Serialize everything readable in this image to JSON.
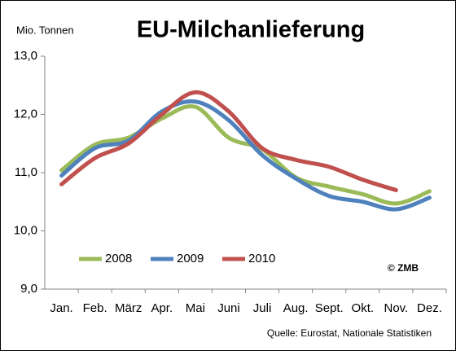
{
  "chart_data": {
    "type": "line",
    "title": "EU-Milchanlieferung",
    "y_label": "Mio. Tonnen",
    "annotation": "© ZMB",
    "source": "Quelle: Eurostat,  Nationale Statistiken",
    "categories": [
      "Jan.",
      "Feb.",
      "März",
      "Apr.",
      "Mai",
      "Juni",
      "Juli",
      "Aug.",
      "Sept.",
      "Okt.",
      "Nov.",
      "Dez."
    ],
    "series": [
      {
        "name": "2008",
        "color": "#9bbb59",
        "values": [
          11.04,
          11.48,
          11.6,
          11.93,
          12.13,
          11.6,
          11.4,
          10.92,
          10.76,
          10.63,
          10.47,
          10.68
        ]
      },
      {
        "name": "2009",
        "color": "#4f81bd",
        "values": [
          10.95,
          11.42,
          11.55,
          12.05,
          12.22,
          11.9,
          11.3,
          10.9,
          10.6,
          10.5,
          10.37,
          10.57
        ]
      },
      {
        "name": "2010",
        "color": "#c0504d",
        "values": [
          10.8,
          11.25,
          11.5,
          12.0,
          12.38,
          12.05,
          11.42,
          11.22,
          11.1,
          10.88,
          10.7,
          null
        ]
      }
    ],
    "ylim": [
      9,
      13
    ],
    "yticks": [
      {
        "value": 9,
        "label": "9,0"
      },
      {
        "value": 10,
        "label": "10,0"
      },
      {
        "value": 11,
        "label": "11,0"
      },
      {
        "value": 12,
        "label": "12,0"
      },
      {
        "value": 13,
        "label": "13,0"
      }
    ],
    "legend": "lower-left",
    "smooth": true
  }
}
